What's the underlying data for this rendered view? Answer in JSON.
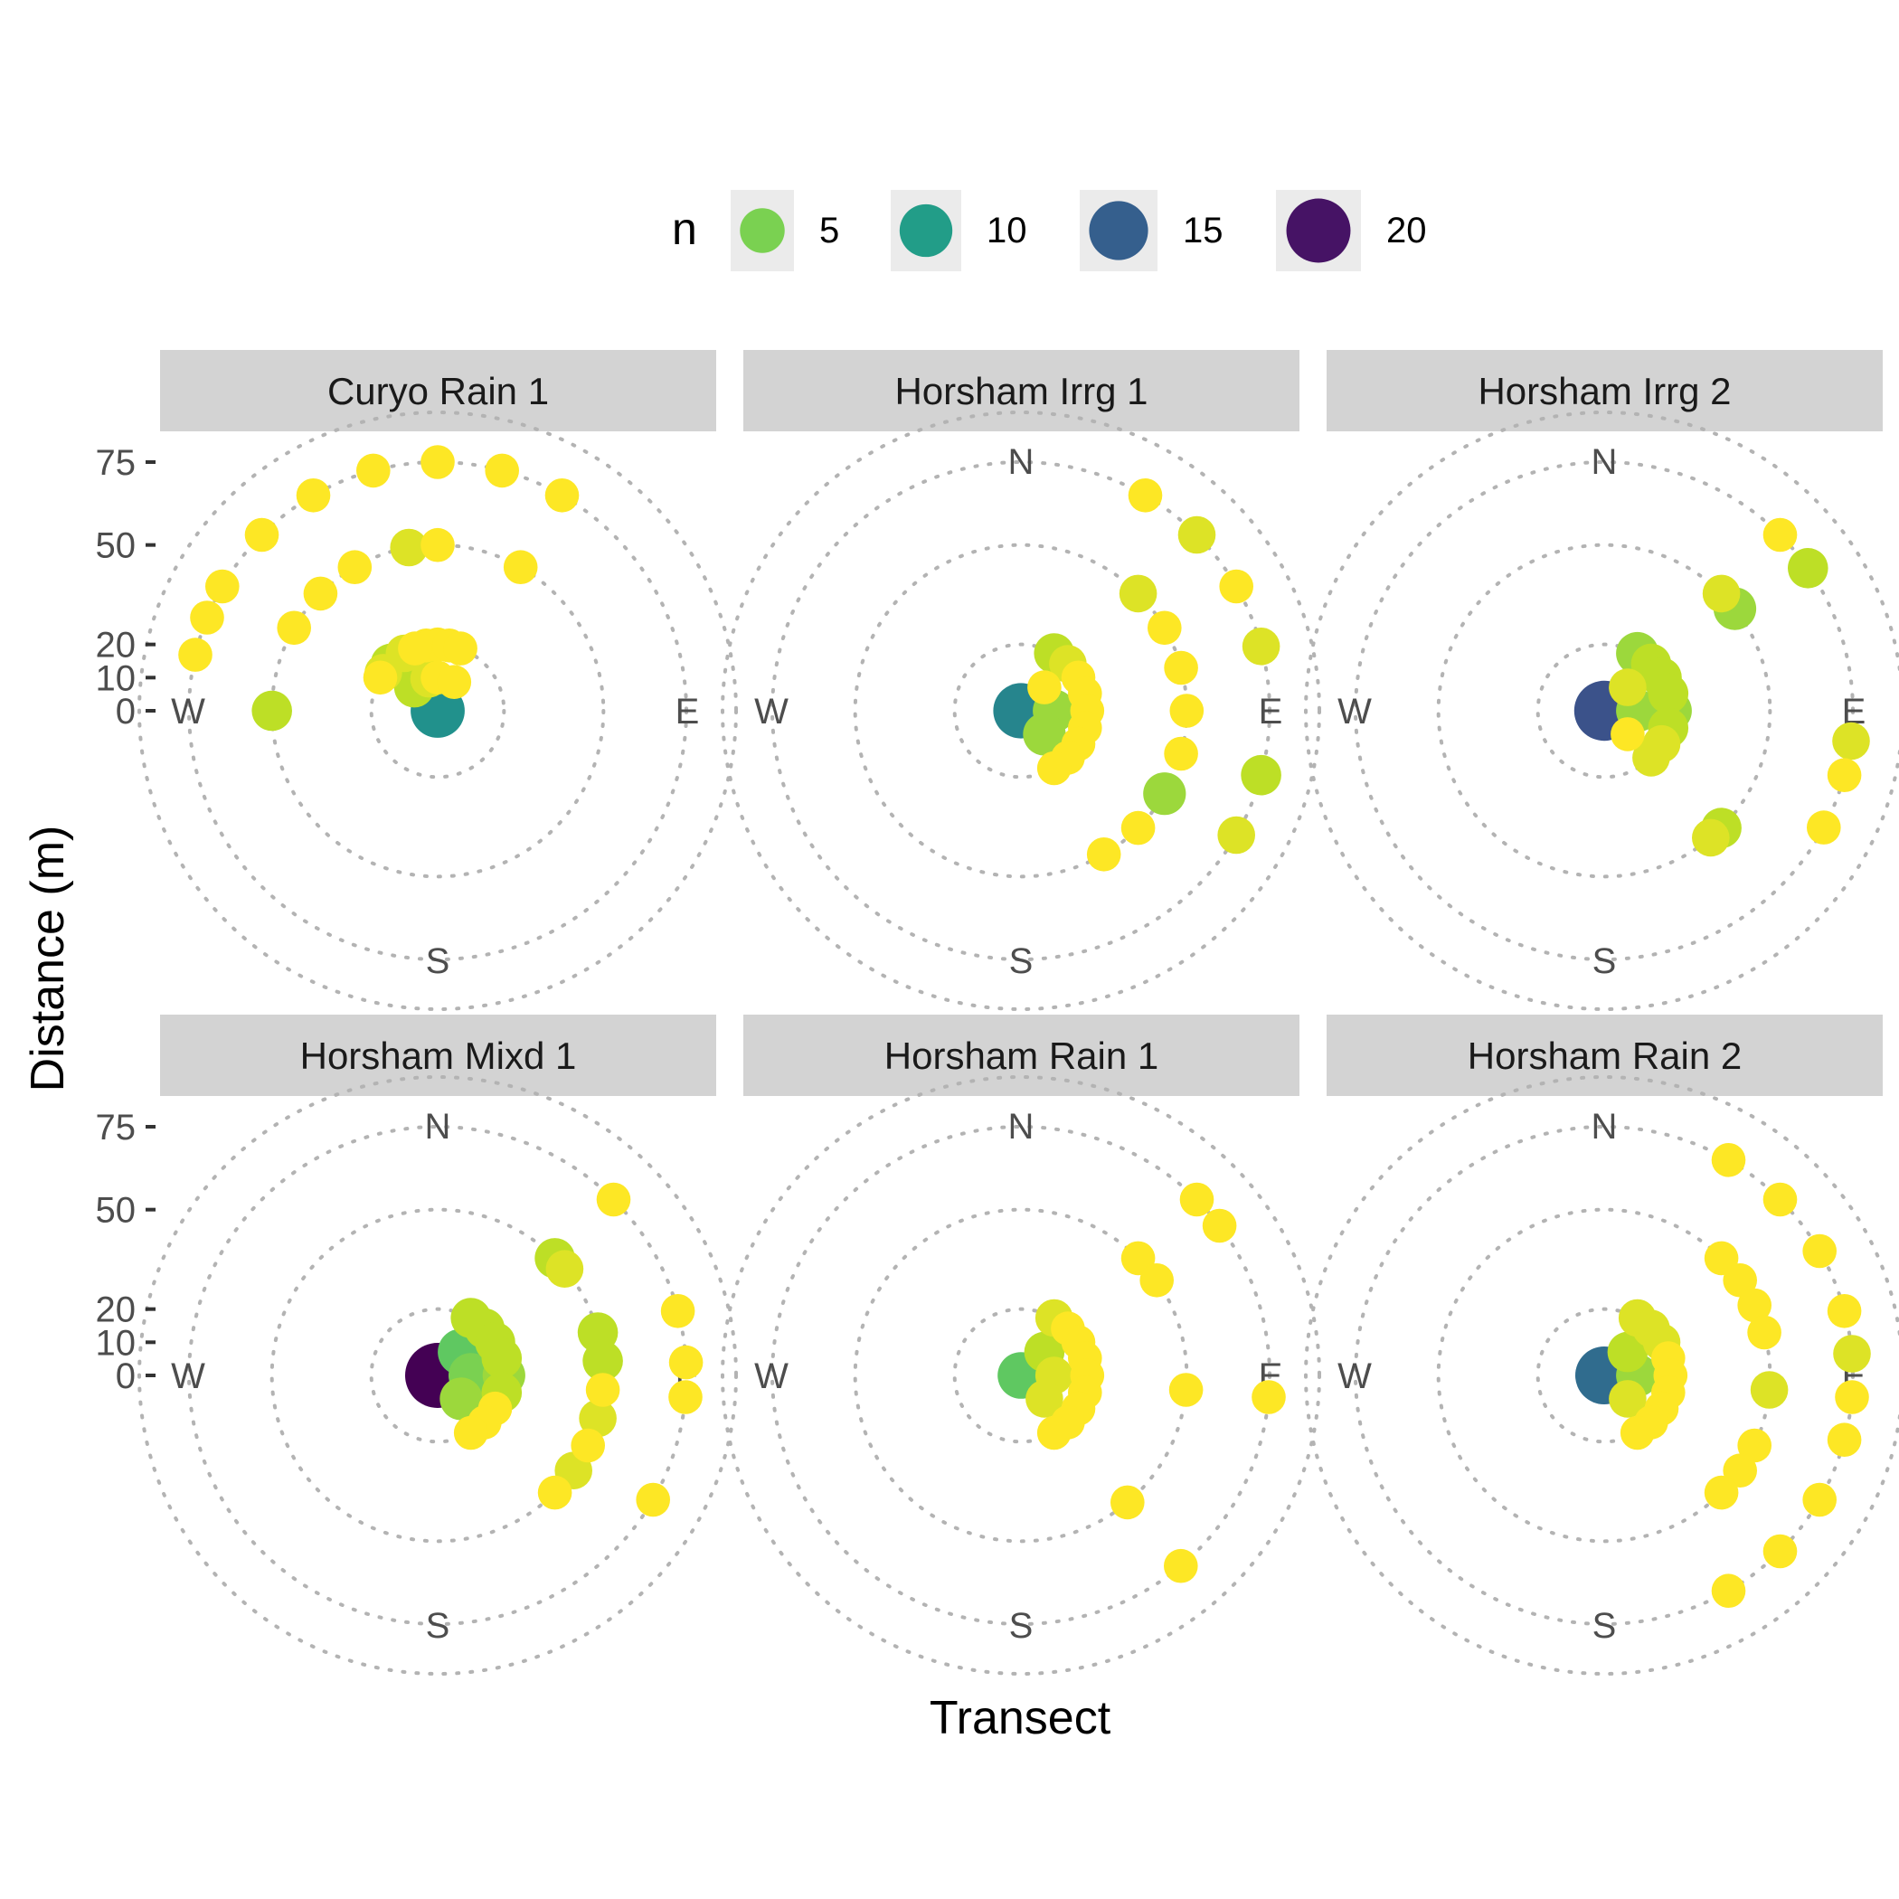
{
  "chart_data": {
    "type": "scatter",
    "coord": "polar",
    "xlabel": "Transect",
    "ylabel": "Distance (m)",
    "y_ticks": [
      0,
      10,
      20,
      50,
      75
    ],
    "r_rings": [
      20,
      50,
      75,
      90
    ],
    "compass": [
      "N",
      "E",
      "S",
      "W"
    ],
    "legend": {
      "title": "n",
      "position": "top",
      "entries": [
        {
          "label": "5",
          "n": 5,
          "color": "#5ec962"
        },
        {
          "label": "10",
          "n": 10,
          "color": "#21918c"
        },
        {
          "label": "15",
          "n": 15,
          "color": "#2c5a82"
        },
        {
          "label": "20",
          "n": 20,
          "color": "#3b1c5a"
        }
      ]
    },
    "color_scale": "viridis",
    "n_range": [
      1,
      21
    ],
    "panels": [
      {
        "title": "Curyo Rain 1",
        "points": [
          {
            "deg": 0,
            "r": 0,
            "n": 11
          },
          {
            "deg": 315,
            "r": 75,
            "n": 1
          },
          {
            "deg": 330,
            "r": 75,
            "n": 1
          },
          {
            "deg": 345,
            "r": 75,
            "n": 1
          },
          {
            "deg": 0,
            "r": 75,
            "n": 1
          },
          {
            "deg": 15,
            "r": 75,
            "n": 1
          },
          {
            "deg": 30,
            "r": 75,
            "n": 1
          },
          {
            "deg": 292,
            "r": 75,
            "n": 1
          },
          {
            "deg": 300,
            "r": 75,
            "n": 1
          },
          {
            "deg": 0,
            "r": 50,
            "n": 1
          },
          {
            "deg": 350,
            "r": 50,
            "n": 2
          },
          {
            "deg": 330,
            "r": 50,
            "n": 1
          },
          {
            "deg": 315,
            "r": 50,
            "n": 1
          },
          {
            "deg": 300,
            "r": 50,
            "n": 1
          },
          {
            "deg": 30,
            "r": 50,
            "n": 1
          },
          {
            "deg": 270,
            "r": 50,
            "n": 3
          },
          {
            "deg": 283,
            "r": 75,
            "n": 1
          },
          {
            "deg": 350,
            "r": 20,
            "n": 1
          },
          {
            "deg": 0,
            "r": 20,
            "n": 1
          },
          {
            "deg": 10,
            "r": 20,
            "n": 1
          },
          {
            "deg": 20,
            "r": 20,
            "n": 1
          },
          {
            "deg": 340,
            "r": 20,
            "n": 1
          },
          {
            "deg": 330,
            "r": 20,
            "n": 2
          },
          {
            "deg": 315,
            "r": 20,
            "n": 3
          },
          {
            "deg": 305,
            "r": 20,
            "n": 2
          },
          {
            "deg": 300,
            "r": 20,
            "n": 1
          },
          {
            "deg": 0,
            "r": 10,
            "n": 1
          },
          {
            "deg": 345,
            "r": 10,
            "n": 2
          },
          {
            "deg": 30,
            "r": 10,
            "n": 1
          },
          {
            "deg": 315,
            "r": 10,
            "n": 3
          }
        ]
      },
      {
        "title": "Horsham Irrg 1",
        "points": [
          {
            "deg": 270,
            "r": 0,
            "n": 12
          },
          {
            "deg": 45,
            "r": 10,
            "n": 1
          },
          {
            "deg": 90,
            "r": 10,
            "n": 4
          },
          {
            "deg": 135,
            "r": 10,
            "n": 4
          },
          {
            "deg": 30,
            "r": 20,
            "n": 3
          },
          {
            "deg": 45,
            "r": 20,
            "n": 2
          },
          {
            "deg": 60,
            "r": 20,
            "n": 1
          },
          {
            "deg": 75,
            "r": 20,
            "n": 1
          },
          {
            "deg": 90,
            "r": 20,
            "n": 1
          },
          {
            "deg": 105,
            "r": 20,
            "n": 1
          },
          {
            "deg": 120,
            "r": 20,
            "n": 1
          },
          {
            "deg": 135,
            "r": 20,
            "n": 1
          },
          {
            "deg": 150,
            "r": 20,
            "n": 1
          },
          {
            "deg": 45,
            "r": 50,
            "n": 2
          },
          {
            "deg": 60,
            "r": 50,
            "n": 1
          },
          {
            "deg": 75,
            "r": 50,
            "n": 1
          },
          {
            "deg": 90,
            "r": 50,
            "n": 1
          },
          {
            "deg": 105,
            "r": 50,
            "n": 1
          },
          {
            "deg": 120,
            "r": 50,
            "n": 4
          },
          {
            "deg": 135,
            "r": 50,
            "n": 1
          },
          {
            "deg": 150,
            "r": 50,
            "n": 1
          },
          {
            "deg": 30,
            "r": 75,
            "n": 1
          },
          {
            "deg": 45,
            "r": 75,
            "n": 2
          },
          {
            "deg": 60,
            "r": 75,
            "n": 1
          },
          {
            "deg": 75,
            "r": 75,
            "n": 2
          },
          {
            "deg": 105,
            "r": 75,
            "n": 3
          },
          {
            "deg": 120,
            "r": 75,
            "n": 2
          }
        ]
      },
      {
        "title": "Horsham Irrg 2",
        "points": [
          {
            "deg": 270,
            "r": 0,
            "n": 16
          },
          {
            "deg": 45,
            "r": 10,
            "n": 2
          },
          {
            "deg": 90,
            "r": 10,
            "n": 4
          },
          {
            "deg": 135,
            "r": 10,
            "n": 1
          },
          {
            "deg": 30,
            "r": 20,
            "n": 4
          },
          {
            "deg": 45,
            "r": 20,
            "n": 3
          },
          {
            "deg": 60,
            "r": 20,
            "n": 3
          },
          {
            "deg": 75,
            "r": 20,
            "n": 3
          },
          {
            "deg": 90,
            "r": 20,
            "n": 4
          },
          {
            "deg": 105,
            "r": 20,
            "n": 3
          },
          {
            "deg": 120,
            "r": 20,
            "n": 2
          },
          {
            "deg": 135,
            "r": 20,
            "n": 2
          },
          {
            "deg": 45,
            "r": 50,
            "n": 2
          },
          {
            "deg": 52,
            "r": 50,
            "n": 4
          },
          {
            "deg": 135,
            "r": 50,
            "n": 3
          },
          {
            "deg": 140,
            "r": 50,
            "n": 2
          },
          {
            "deg": 45,
            "r": 75,
            "n": 1
          },
          {
            "deg": 55,
            "r": 75,
            "n": 3
          },
          {
            "deg": 97,
            "r": 75,
            "n": 2
          },
          {
            "deg": 105,
            "r": 75,
            "n": 1
          },
          {
            "deg": 118,
            "r": 75,
            "n": 1
          }
        ]
      },
      {
        "title": "Horsham Mixd 1",
        "points": [
          {
            "deg": 270,
            "r": 0,
            "n": 21
          },
          {
            "deg": 45,
            "r": 10,
            "n": 6
          },
          {
            "deg": 90,
            "r": 10,
            "n": 5
          },
          {
            "deg": 135,
            "r": 10,
            "n": 4
          },
          {
            "deg": 30,
            "r": 20,
            "n": 3
          },
          {
            "deg": 45,
            "r": 20,
            "n": 3
          },
          {
            "deg": 60,
            "r": 20,
            "n": 3
          },
          {
            "deg": 75,
            "r": 20,
            "n": 3
          },
          {
            "deg": 90,
            "r": 20,
            "n": 4
          },
          {
            "deg": 105,
            "r": 20,
            "n": 3
          },
          {
            "deg": 120,
            "r": 20,
            "n": 1
          },
          {
            "deg": 135,
            "r": 20,
            "n": 1
          },
          {
            "deg": 150,
            "r": 20,
            "n": 1
          },
          {
            "deg": 45,
            "r": 50,
            "n": 3
          },
          {
            "deg": 50,
            "r": 50,
            "n": 2
          },
          {
            "deg": 75,
            "r": 50,
            "n": 3
          },
          {
            "deg": 85,
            "r": 50,
            "n": 3
          },
          {
            "deg": 95,
            "r": 50,
            "n": 1
          },
          {
            "deg": 105,
            "r": 50,
            "n": 2
          },
          {
            "deg": 115,
            "r": 50,
            "n": 1
          },
          {
            "deg": 125,
            "r": 50,
            "n": 2
          },
          {
            "deg": 135,
            "r": 50,
            "n": 1
          },
          {
            "deg": 45,
            "r": 75,
            "n": 1
          },
          {
            "deg": 75,
            "r": 75,
            "n": 1
          },
          {
            "deg": 87,
            "r": 75,
            "n": 1
          },
          {
            "deg": 95,
            "r": 75,
            "n": 1
          },
          {
            "deg": 120,
            "r": 75,
            "n": 1
          }
        ]
      },
      {
        "title": "Horsham Rain 1",
        "points": [
          {
            "deg": 270,
            "r": 0,
            "n": 6
          },
          {
            "deg": 45,
            "r": 10,
            "n": 3
          },
          {
            "deg": 90,
            "r": 10,
            "n": 2
          },
          {
            "deg": 135,
            "r": 10,
            "n": 2
          },
          {
            "deg": 30,
            "r": 20,
            "n": 2
          },
          {
            "deg": 45,
            "r": 20,
            "n": 1
          },
          {
            "deg": 60,
            "r": 20,
            "n": 1
          },
          {
            "deg": 75,
            "r": 20,
            "n": 1
          },
          {
            "deg": 90,
            "r": 20,
            "n": 1
          },
          {
            "deg": 105,
            "r": 20,
            "n": 1
          },
          {
            "deg": 120,
            "r": 20,
            "n": 1
          },
          {
            "deg": 135,
            "r": 20,
            "n": 1
          },
          {
            "deg": 150,
            "r": 20,
            "n": 1
          },
          {
            "deg": 45,
            "r": 50,
            "n": 1
          },
          {
            "deg": 55,
            "r": 50,
            "n": 1
          },
          {
            "deg": 95,
            "r": 50,
            "n": 1
          },
          {
            "deg": 140,
            "r": 50,
            "n": 1
          },
          {
            "deg": 45,
            "r": 75,
            "n": 1
          },
          {
            "deg": 53,
            "r": 75,
            "n": 1
          },
          {
            "deg": 95,
            "r": 75,
            "n": 1
          },
          {
            "deg": 140,
            "r": 75,
            "n": 1
          }
        ]
      },
      {
        "title": "Horsham Rain 2",
        "points": [
          {
            "deg": 270,
            "r": 0,
            "n": 14
          },
          {
            "deg": 45,
            "r": 10,
            "n": 3
          },
          {
            "deg": 90,
            "r": 10,
            "n": 4
          },
          {
            "deg": 135,
            "r": 10,
            "n": 2
          },
          {
            "deg": 30,
            "r": 20,
            "n": 2
          },
          {
            "deg": 45,
            "r": 20,
            "n": 2
          },
          {
            "deg": 60,
            "r": 20,
            "n": 2
          },
          {
            "deg": 75,
            "r": 20,
            "n": 1
          },
          {
            "deg": 90,
            "r": 20,
            "n": 1
          },
          {
            "deg": 105,
            "r": 20,
            "n": 1
          },
          {
            "deg": 120,
            "r": 20,
            "n": 1
          },
          {
            "deg": 135,
            "r": 20,
            "n": 1
          },
          {
            "deg": 150,
            "r": 20,
            "n": 1
          },
          {
            "deg": 45,
            "r": 50,
            "n": 1
          },
          {
            "deg": 55,
            "r": 50,
            "n": 1
          },
          {
            "deg": 65,
            "r": 50,
            "n": 1
          },
          {
            "deg": 75,
            "r": 50,
            "n": 1
          },
          {
            "deg": 95,
            "r": 50,
            "n": 2
          },
          {
            "deg": 115,
            "r": 50,
            "n": 1
          },
          {
            "deg": 125,
            "r": 50,
            "n": 1
          },
          {
            "deg": 135,
            "r": 50,
            "n": 1
          },
          {
            "deg": 30,
            "r": 75,
            "n": 1
          },
          {
            "deg": 45,
            "r": 75,
            "n": 1
          },
          {
            "deg": 60,
            "r": 75,
            "n": 1
          },
          {
            "deg": 75,
            "r": 75,
            "n": 1
          },
          {
            "deg": 85,
            "r": 75,
            "n": 2
          },
          {
            "deg": 95,
            "r": 75,
            "n": 1
          },
          {
            "deg": 105,
            "r": 75,
            "n": 1
          },
          {
            "deg": 120,
            "r": 75,
            "n": 1
          },
          {
            "deg": 135,
            "r": 75,
            "n": 1
          },
          {
            "deg": 150,
            "r": 75,
            "n": 1
          }
        ]
      }
    ]
  }
}
